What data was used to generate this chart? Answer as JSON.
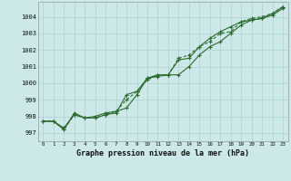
{
  "title": "Graphe pression niveau de la mer (hPa)",
  "bg_color": "#cce8e8",
  "grid_color": "#b0d0d0",
  "line_color": "#2d6a2d",
  "x_labels": [
    "0",
    "1",
    "2",
    "3",
    "4",
    "5",
    "6",
    "7",
    "8",
    "9",
    "10",
    "11",
    "12",
    "13",
    "14",
    "15",
    "16",
    "17",
    "18",
    "19",
    "20",
    "21",
    "22",
    "23"
  ],
  "ylim": [
    996.5,
    1004.9
  ],
  "yticks": [
    997,
    998,
    999,
    1000,
    1001,
    1002,
    1003,
    1004
  ],
  "series1": [
    997.7,
    997.7,
    997.2,
    998.2,
    997.9,
    998.0,
    998.2,
    998.3,
    998.5,
    999.3,
    1000.3,
    1000.4,
    1000.5,
    1000.5,
    1001.0,
    1001.7,
    1002.2,
    1002.5,
    1003.0,
    1003.5,
    1003.8,
    1003.9,
    1004.1,
    1004.5
  ],
  "series2": [
    997.7,
    997.7,
    997.3,
    998.1,
    997.9,
    997.9,
    998.1,
    998.2,
    999.3,
    999.5,
    1000.3,
    1000.5,
    1000.5,
    1001.4,
    1001.5,
    1002.2,
    1002.7,
    1003.1,
    1003.4,
    1003.7,
    1003.8,
    1003.9,
    1004.2,
    1004.6
  ],
  "series3": [
    997.7,
    997.7,
    997.2,
    998.1,
    997.9,
    997.9,
    998.1,
    998.3,
    999.0,
    999.5,
    1000.2,
    1000.5,
    1000.5,
    1001.5,
    1001.7,
    1002.2,
    1002.5,
    1003.0,
    1003.1,
    1003.7,
    1003.9,
    1004.0,
    1004.2,
    1004.6
  ]
}
